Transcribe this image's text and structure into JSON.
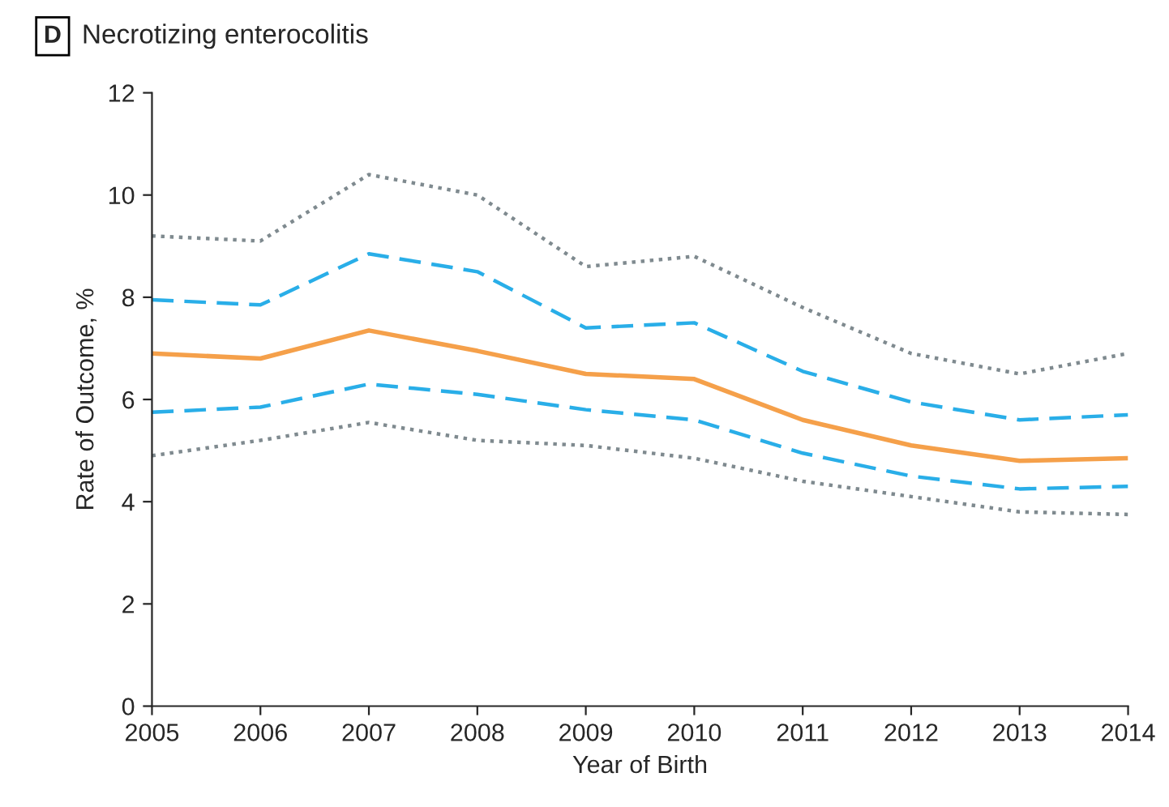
{
  "chart_data": {
    "type": "line",
    "title": "Necrotizing enterocolitis",
    "xlabel": "Year of Birth",
    "ylabel": "Rate of Outcome, %",
    "annotations": [
      "D"
    ],
    "x": [
      2005,
      2006,
      2007,
      2008,
      2009,
      2010,
      2011,
      2012,
      2013,
      2014
    ],
    "series": [
      {
        "color": "#7f8a8f",
        "line_style": "dotted",
        "values": [
          9.2,
          9.1,
          10.4,
          10.0,
          8.6,
          8.8,
          7.8,
          6.9,
          6.5,
          6.9
        ]
      },
      {
        "color": "#29aee8",
        "line_style": "dashed",
        "values": [
          7.95,
          7.85,
          8.85,
          8.5,
          7.4,
          7.5,
          6.55,
          5.95,
          5.6,
          5.7
        ]
      },
      {
        "color": "#f5a04a",
        "line_style": "solid",
        "values": [
          6.9,
          6.8,
          7.35,
          6.95,
          6.5,
          6.4,
          5.6,
          5.1,
          4.8,
          4.85
        ]
      },
      {
        "color": "#29aee8",
        "line_style": "dashed",
        "values": [
          5.75,
          5.85,
          6.3,
          6.1,
          5.8,
          5.6,
          4.95,
          4.5,
          4.25,
          4.3
        ]
      },
      {
        "color": "#7f8a8f",
        "line_style": "dotted",
        "values": [
          4.9,
          5.2,
          5.55,
          5.2,
          5.1,
          4.85,
          4.4,
          4.1,
          3.8,
          3.75
        ]
      }
    ],
    "xlim": [
      2005,
      2014
    ],
    "xticks": [
      2005,
      2006,
      2007,
      2008,
      2009,
      2010,
      2011,
      2012,
      2013,
      2014
    ],
    "ylim": [
      0,
      12
    ],
    "yticks": [
      0,
      2,
      4,
      6,
      8,
      10,
      12
    ],
    "grid": false,
    "marker": "none"
  }
}
